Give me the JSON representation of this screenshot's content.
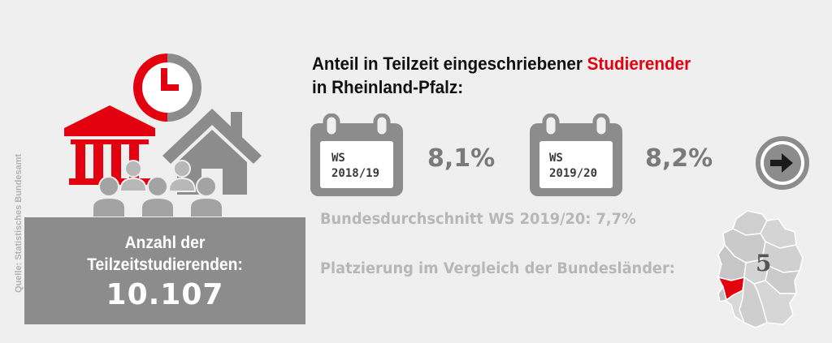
{
  "source": "Quelle: Statistisches Bundesamt",
  "info_box": {
    "line1": "Anzahl der",
    "line2": "Teilzeitstudierenden:",
    "value": "10.107"
  },
  "headline": {
    "part1": "Anteil in Teilzeit eingeschriebener ",
    "highlight": "Studierender",
    "line2": "in Rheinland-Pfalz:"
  },
  "semesters": [
    {
      "label_line1": "WS",
      "label_line2": "2018/19",
      "value": "8,1%"
    },
    {
      "label_line1": "WS",
      "label_line2": "2019/20",
      "value": "8,2%"
    }
  ],
  "federal_average": "Bundesdurchschnitt WS 2019/20: 7,7%",
  "ranking_label": "Platzierung im Vergleich der Bundesländer:",
  "rank": "5",
  "icons": [
    "clock-icon",
    "university-building-icon",
    "house-icon",
    "people-icon",
    "calendar-icon",
    "arrow-right-icon",
    "germany-map-icon"
  ],
  "colors": {
    "accent": "#e3000f",
    "icon_grey": "#8c8c8c",
    "background": "#efefef"
  }
}
